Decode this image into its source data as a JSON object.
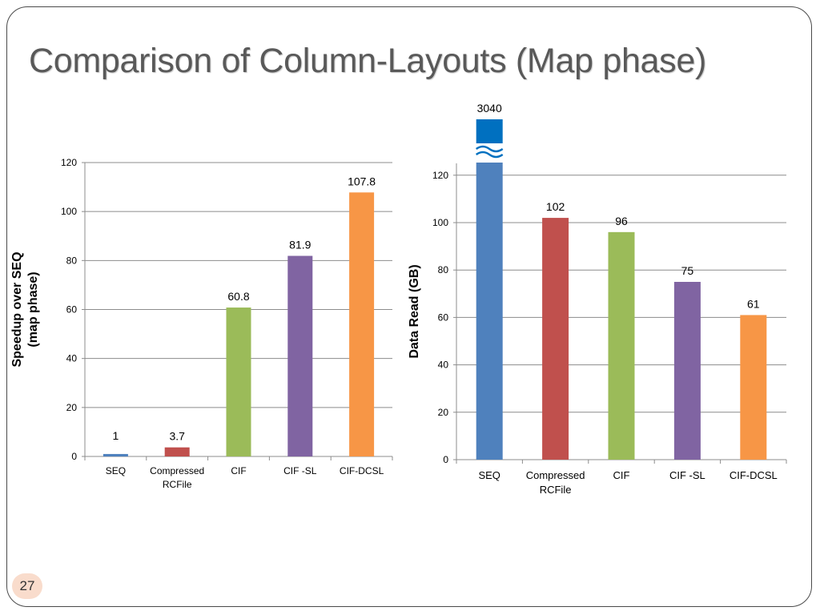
{
  "slide": {
    "title": "Comparison of Column-Layouts (Map phase)",
    "page_number": "27"
  },
  "colors": {
    "seq": "#4f81bd",
    "compressed_rcfile": "#c0504d",
    "cif": "#9bbb59",
    "cif_sl": "#8064a2",
    "cif_dcsl": "#f79646",
    "break_marker": "#0070c0"
  },
  "chart_data": [
    {
      "type": "bar",
      "categories": [
        "SEQ",
        "Compressed RCFile",
        "CIF",
        "CIF -SL",
        "CIF-DCSL"
      ],
      "values": [
        1,
        3.7,
        60.8,
        81.9,
        107.8
      ],
      "value_labels": [
        "1",
        "3.7",
        "60.8",
        "81.9",
        "107.8"
      ],
      "ylabel": "Speedup over SEQ (map phase)",
      "ylim": [
        0,
        120
      ],
      "yticks": [
        "0",
        "20",
        "40",
        "60",
        "80",
        "100",
        "120"
      ],
      "grid": true,
      "legend": "none"
    },
    {
      "type": "bar",
      "categories": [
        "SEQ",
        "Compressed RCFile",
        "CIF",
        "CIF -SL",
        "CIF-DCSL"
      ],
      "values": [
        3040,
        102,
        96,
        75,
        61
      ],
      "value_labels": [
        "3040",
        "102",
        "96",
        "75",
        "61"
      ],
      "ylabel": "Data Read (GB)",
      "ylim": [
        0,
        125
      ],
      "yticks": [
        "0",
        "20",
        "40",
        "60",
        "80",
        "100",
        "120"
      ],
      "axis_break": "SEQ bar exceeds axis; broken with ≈ marker",
      "grid": true,
      "legend": "none"
    }
  ]
}
